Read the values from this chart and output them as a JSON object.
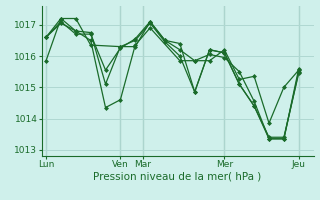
{
  "bg_color": "#cff0eb",
  "grid_color": "#b0d8d2",
  "line_color": "#1a6b2a",
  "marker_color": "#1a6b2a",
  "xlabel": "Pression niveau de la mer( hPa )",
  "xlabel_color": "#1a6b2a",
  "tick_color": "#1a6b2a",
  "ylim": [
    1012.8,
    1017.6
  ],
  "yticks": [
    1013,
    1014,
    1015,
    1016,
    1017
  ],
  "xtick_labels": [
    "Lun",
    "Ven",
    "Mar",
    "Mer",
    "Jeu"
  ],
  "xtick_positions": [
    0,
    5,
    6.5,
    12,
    17
  ],
  "vline_positions": [
    0,
    5,
    6.5,
    12,
    17
  ],
  "xlim": [
    -0.3,
    18.0
  ],
  "series": [
    {
      "x": [
        0,
        1,
        2,
        3,
        4,
        5,
        6,
        7,
        8,
        9,
        10,
        11,
        12,
        13,
        14,
        15,
        16,
        17
      ],
      "y": [
        1016.6,
        1017.05,
        1016.8,
        1016.75,
        1015.1,
        1016.3,
        1016.3,
        1017.1,
        1016.5,
        1016.4,
        1014.85,
        1016.2,
        1016.1,
        1015.1,
        1014.4,
        1013.35,
        1013.35,
        1015.5
      ]
    },
    {
      "x": [
        0,
        1,
        2,
        3,
        4,
        5,
        6,
        7,
        8,
        9,
        10,
        11,
        12,
        13,
        14,
        15,
        16,
        17
      ],
      "y": [
        1016.6,
        1017.1,
        1016.7,
        1016.7,
        1015.55,
        1016.25,
        1016.55,
        1017.1,
        1016.5,
        1016.2,
        1015.85,
        1016.05,
        1015.95,
        1015.5,
        1014.55,
        1013.35,
        1013.35,
        1015.6
      ]
    },
    {
      "x": [
        0,
        1,
        2,
        3,
        5,
        6,
        7,
        8,
        9,
        10,
        11,
        12,
        13,
        14,
        15,
        16,
        17
      ],
      "y": [
        1015.85,
        1017.2,
        1017.2,
        1016.35,
        1016.3,
        1016.5,
        1017.05,
        1016.45,
        1016.0,
        1014.85,
        1016.2,
        1016.1,
        1015.1,
        1014.4,
        1013.4,
        1013.4,
        1015.45
      ]
    },
    {
      "x": [
        0,
        1,
        2,
        3,
        4,
        5,
        6,
        7,
        9,
        10,
        11,
        12,
        13,
        14,
        15,
        16,
        17
      ],
      "y": [
        1016.6,
        1017.2,
        1016.8,
        1016.5,
        1014.35,
        1014.6,
        1016.35,
        1016.9,
        1015.85,
        1015.85,
        1015.85,
        1016.2,
        1015.25,
        1015.35,
        1013.85,
        1015.0,
        1015.55
      ]
    }
  ]
}
